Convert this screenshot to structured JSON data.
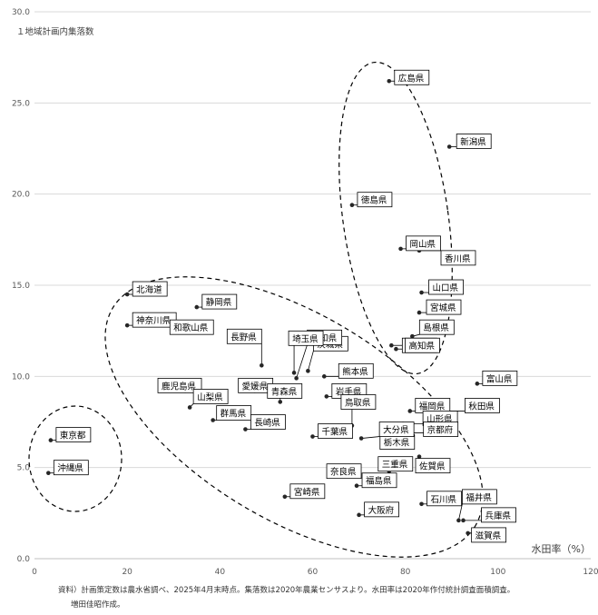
{
  "chart_data": {
    "type": "scatter",
    "ylabel": "１地域計画内集落数",
    "xlabel": "水田率（%）",
    "xlim": [
      0,
      120
    ],
    "ylim": [
      0,
      30
    ],
    "x_ticks": [
      "0",
      "20",
      "40",
      "60",
      "80",
      "100",
      "120"
    ],
    "y_ticks": [
      "0.0",
      "5.0",
      "10.0",
      "15.0",
      "20.0",
      "25.0",
      "30.0"
    ],
    "grid": "horizontal",
    "points": [
      {
        "name": "広島県",
        "x": 76.5,
        "y": 26.2
      },
      {
        "name": "新潟県",
        "x": 89.5,
        "y": 22.6
      },
      {
        "name": "徳島県",
        "x": 68.5,
        "y": 19.4
      },
      {
        "name": "岡山県",
        "x": 79.0,
        "y": 17.0
      },
      {
        "name": "香川県",
        "x": 83.0,
        "y": 16.9
      },
      {
        "name": "山口県",
        "x": 83.5,
        "y": 14.6
      },
      {
        "name": "宮城県",
        "x": 83.0,
        "y": 13.5
      },
      {
        "name": "島根県",
        "x": 81.5,
        "y": 12.2
      },
      {
        "name": "岐阜県",
        "x": 77.0,
        "y": 11.7
      },
      {
        "name": "高知県",
        "x": 78.0,
        "y": 11.5
      },
      {
        "name": "熊本県",
        "x": 62.5,
        "y": 10.0
      },
      {
        "name": "茨城県",
        "x": 59.0,
        "y": 10.3
      },
      {
        "name": "愛知県",
        "x": 56.5,
        "y": 9.9
      },
      {
        "name": "埼玉県",
        "x": 56.0,
        "y": 10.2
      },
      {
        "name": "長野県",
        "x": 49.0,
        "y": 10.6
      },
      {
        "name": "富山県",
        "x": 95.5,
        "y": 9.6
      },
      {
        "name": "福岡県",
        "x": 81.0,
        "y": 8.1
      },
      {
        "name": "秋田県",
        "x": 87.0,
        "y": 8.1
      },
      {
        "name": "山形県",
        "x": 79.5,
        "y": 7.4
      },
      {
        "name": "京都府",
        "x": 80.0,
        "y": 6.9
      },
      {
        "name": "栃木県",
        "x": 76.5,
        "y": 6.9
      },
      {
        "name": "佐賀県",
        "x": 83.0,
        "y": 5.6
      },
      {
        "name": "鹿児島県",
        "x": 32.5,
        "y": 9.2
      },
      {
        "name": "愛媛県",
        "x": 47.5,
        "y": 9.2
      },
      {
        "name": "青森県",
        "x": 53.0,
        "y": 8.6
      },
      {
        "name": "岩手県",
        "x": 63.0,
        "y": 8.9
      },
      {
        "name": "山梨県",
        "x": 33.5,
        "y": 8.3
      },
      {
        "name": "群馬県",
        "x": 38.5,
        "y": 7.6
      },
      {
        "name": "長崎県",
        "x": 45.5,
        "y": 7.1
      },
      {
        "name": "鳥取県",
        "x": 68.5,
        "y": 7.3
      },
      {
        "name": "千葉県",
        "x": 60.0,
        "y": 6.7
      },
      {
        "name": "大分県",
        "x": 70.5,
        "y": 6.6
      },
      {
        "name": "奈良県",
        "x": 65.0,
        "y": 5.0
      },
      {
        "name": "三重県",
        "x": 76.5,
        "y": 4.8
      },
      {
        "name": "福島県",
        "x": 69.5,
        "y": 4.0
      },
      {
        "name": "宮崎県",
        "x": 54.0,
        "y": 3.4
      },
      {
        "name": "石川県",
        "x": 83.5,
        "y": 3.0
      },
      {
        "name": "大阪府",
        "x": 70.0,
        "y": 2.4
      },
      {
        "name": "福井県",
        "x": 91.5,
        "y": 2.1
      },
      {
        "name": "兵庫県",
        "x": 92.5,
        "y": 2.1
      },
      {
        "name": "滋賀県",
        "x": 93.5,
        "y": 1.4
      },
      {
        "name": "北海道",
        "x": 20.0,
        "y": 14.5
      },
      {
        "name": "静岡県",
        "x": 35.0,
        "y": 13.8
      },
      {
        "name": "神奈川県",
        "x": 20.0,
        "y": 12.8
      },
      {
        "name": "和歌山県",
        "x": 30.0,
        "y": 12.4
      },
      {
        "name": "東京都",
        "x": 3.5,
        "y": 6.5
      },
      {
        "name": "沖縄県",
        "x": 3.0,
        "y": 4.7
      }
    ]
  },
  "footnote": {
    "line1": "資料）計画策定数は農水省調べ、2025年4月末時点。集落数は2020年農業センサスより。水田率は2020年作付統計調査面積調査。",
    "line2": "増田佳昭作成。"
  }
}
